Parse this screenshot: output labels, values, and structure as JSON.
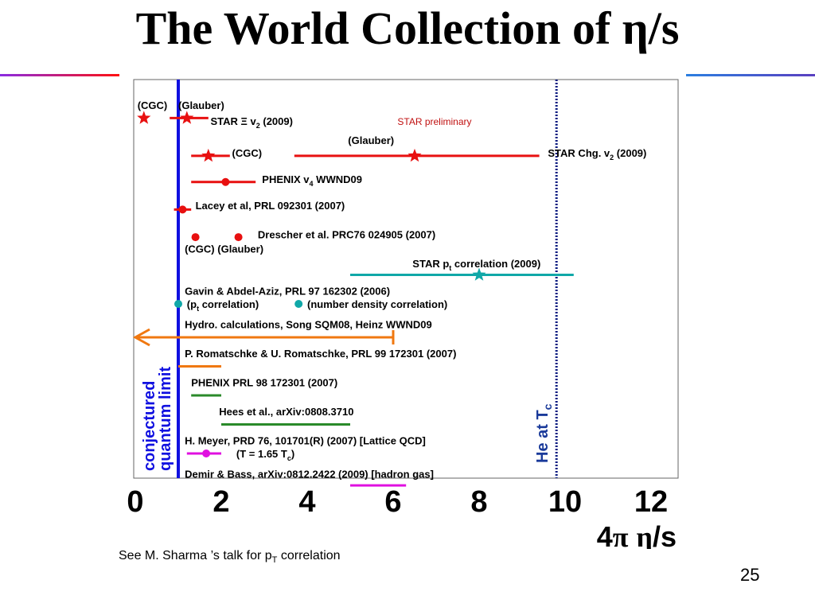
{
  "slide": {
    "title_prefix": "The World Collection of ",
    "title_symbol": "η",
    "title_suffix": "/s",
    "footnote_prefix": "See M. Sharma ’s talk for p",
    "footnote_sub": "T",
    "footnote_suffix": " correlation",
    "page_number": "25"
  },
  "chart_data": {
    "type": "scatter",
    "title": "",
    "xlabel_prefix": "4",
    "xlabel_pi": "π",
    "xlabel_eta": "η",
    "xlabel_suffix": "/s",
    "xlim": [
      0,
      12.5
    ],
    "xticks": [
      0,
      2,
      4,
      6,
      8,
      10,
      12
    ],
    "grid": false,
    "watermark": "STAR preliminary",
    "reference_lines": [
      {
        "name": "conjectured-limit",
        "x": 1.0,
        "style": "solid",
        "color": "#1010e0",
        "label_line1": "conjectured",
        "label_line2": "quantum limit"
      },
      {
        "name": "helium-tc",
        "x": 9.8,
        "style": "dotted",
        "color": "#0a1a80",
        "label": "He at T",
        "label_sub": "c"
      }
    ],
    "colors": {
      "red": "#e81010",
      "cyan": "#10a8a8",
      "orange": "#f07810",
      "green": "#2a8a2a",
      "magenta": "#e010e0",
      "label": "#000000"
    },
    "labels": [
      {
        "name": "label-cgc-star",
        "parts": [
          [
            "(CGC)"
          ]
        ],
        "x": 0.05,
        "row": 0
      },
      {
        "name": "label-glauber-star",
        "parts": [
          [
            "(Glauber)"
          ]
        ],
        "x": 1.0,
        "row": 0
      },
      {
        "name": "label-star-xi",
        "parts": [
          [
            "STAR Ξ v"
          ],
          [
            "2",
            "sub"
          ],
          [
            " (2009)"
          ]
        ],
        "x": 1.75,
        "row": 0.55
      },
      {
        "name": "label-star-prelim",
        "parts": [
          [
            "STAR preliminary"
          ]
        ],
        "x": 6.1,
        "row": 0.55,
        "kind": "watermark"
      },
      {
        "name": "label-cgc-chg",
        "parts": [
          [
            "(CGC)"
          ]
        ],
        "x": 2.25,
        "row": 1.65
      },
      {
        "name": "label-glauber-chg",
        "parts": [
          [
            "(Glauber)"
          ]
        ],
        "x": 4.95,
        "row": 1.2
      },
      {
        "name": "label-star-chg",
        "parts": [
          [
            "STAR Chg. v"
          ],
          [
            "2",
            "sub"
          ],
          [
            " (2009)"
          ]
        ],
        "x": 9.6,
        "row": 1.65
      },
      {
        "name": "label-phenix-v4",
        "parts": [
          [
            "PHENIX v"
          ],
          [
            "4",
            "sub"
          ],
          [
            " WWND09"
          ]
        ],
        "x": 2.95,
        "row": 2.55
      },
      {
        "name": "label-lacey",
        "parts": [
          [
            "Lacey et al, PRL 092301 (2007)"
          ]
        ],
        "x": 1.4,
        "row": 3.45
      },
      {
        "name": "label-drescher",
        "parts": [
          [
            "Drescher et al. PRC76 024905 (2007)"
          ]
        ],
        "x": 2.85,
        "row": 4.45
      },
      {
        "name": "label-cgc-glauber",
        "parts": [
          [
            "(CGC)  (Glauber)"
          ]
        ],
        "x": 1.15,
        "row": 4.95
      },
      {
        "name": "label-star-pt",
        "parts": [
          [
            "STAR p"
          ],
          [
            "t",
            "sub"
          ],
          [
            " correlation (2009)"
          ]
        ],
        "x": 6.45,
        "row": 5.45
      },
      {
        "name": "label-gavin",
        "parts": [
          [
            "Gavin & Abdel-Aziz, PRL 97 162302 (2006)"
          ]
        ],
        "x": 1.15,
        "row": 6.4
      },
      {
        "name": "label-pt-corr",
        "parts": [
          [
            "(p"
          ],
          [
            "t",
            "sub"
          ],
          [
            " correlation)"
          ]
        ],
        "x": 1.2,
        "row": 6.85
      },
      {
        "name": "label-num-density",
        "parts": [
          [
            "(number density correlation)"
          ]
        ],
        "x": 4.0,
        "row": 6.85
      },
      {
        "name": "label-hydro",
        "parts": [
          [
            "Hydro. calculations, Song SQM08, Heinz WWND09"
          ]
        ],
        "x": 1.15,
        "row": 7.55
      },
      {
        "name": "label-romatschke",
        "parts": [
          [
            "P. Romatschke & U. Romatschke, PRL 99 172301 (2007)"
          ]
        ],
        "x": 1.15,
        "row": 8.55
      },
      {
        "name": "label-phenix-prl",
        "parts": [
          [
            "PHENIX PRL 98 172301 (2007)"
          ]
        ],
        "x": 1.3,
        "row": 9.55
      },
      {
        "name": "label-hees",
        "parts": [
          [
            "Hees et al., arXiv:0808.3710"
          ]
        ],
        "x": 1.95,
        "row": 10.55
      },
      {
        "name": "label-meyer",
        "parts": [
          [
            "H. Meyer, PRD 76, 101701(R) (2007) [Lattice QCD]"
          ]
        ],
        "x": 1.15,
        "row": 11.55
      },
      {
        "name": "label-meyer-t",
        "parts": [
          [
            "(T = 1.65 T"
          ],
          [
            "c",
            "sub"
          ],
          [
            ")"
          ]
        ],
        "x": 2.35,
        "row": 12.0
      },
      {
        "name": "label-demir",
        "parts": [
          [
            "Demir & Bass, arXiv:0812.2422 (2009) [hadron gas]"
          ]
        ],
        "x": 1.15,
        "row": 12.7
      }
    ],
    "series": [
      {
        "name": "STAR Ξ v2 (2009)",
        "color": "red",
        "marker": "star",
        "points": [
          {
            "x": 0.2,
            "row": 0.45
          },
          {
            "x": 1.2,
            "row": 0.45,
            "xmin": 0.8,
            "xmax": 1.7
          }
        ]
      },
      {
        "name": "STAR Chg. v2 (2009)",
        "color": "red",
        "marker": "star",
        "points": [
          {
            "x": 1.7,
            "row": 1.75,
            "xmin": 1.3,
            "xmax": 2.2
          },
          {
            "x": 6.5,
            "row": 1.75,
            "xmin": 3.7,
            "xmax": 9.4
          }
        ]
      },
      {
        "name": "PHENIX v4 WWND09",
        "color": "red",
        "marker": "circle",
        "points": [
          {
            "x": 2.1,
            "row": 2.65,
            "xmin": 1.3,
            "xmax": 2.8
          }
        ]
      },
      {
        "name": "Lacey et al, PRL 092301 (2007)",
        "color": "red",
        "marker": "circle",
        "points": [
          {
            "x": 1.1,
            "row": 3.6,
            "xmin": 0.9,
            "xmax": 1.3
          }
        ]
      },
      {
        "name": "Drescher et al. PRC76 024905 (2007)",
        "color": "red",
        "marker": "circle",
        "points": [
          {
            "x": 1.4,
            "row": 4.55
          },
          {
            "x": 2.4,
            "row": 4.55
          }
        ]
      },
      {
        "name": "STAR pt correlation (2009)",
        "color": "cyan",
        "marker": "star",
        "points": [
          {
            "x": 8.0,
            "row": 5.85,
            "xmin": 5.0,
            "xmax": 10.2
          }
        ]
      },
      {
        "name": "Gavin & Abdel-Aziz, PRL 97 162302 (2006)",
        "color": "cyan",
        "marker": "circle",
        "points": [
          {
            "x": 1.0,
            "row": 6.85
          },
          {
            "x": 3.8,
            "row": 6.85
          }
        ]
      },
      {
        "name": "Hydro. calculations",
        "color": "orange",
        "marker": "arrow",
        "points": [
          {
            "x": 0.0,
            "row": 8.0,
            "xmin": 0.0,
            "xmax": 6.0
          }
        ]
      },
      {
        "name": "P. Romatschke & U. Romatschke",
        "color": "orange",
        "marker": "bar",
        "points": [
          {
            "x": 1.5,
            "row": 9.0,
            "xmin": 1.0,
            "xmax": 2.0
          }
        ]
      },
      {
        "name": "PHENIX PRL 98 172301 (2007)",
        "color": "green",
        "marker": "bar",
        "points": [
          {
            "x": 1.65,
            "row": 10.0,
            "xmin": 1.3,
            "xmax": 2.0
          }
        ]
      },
      {
        "name": "Hees et al., arXiv:0808.3710",
        "color": "green",
        "marker": "bar",
        "points": [
          {
            "x": 3.5,
            "row": 11.0,
            "xmin": 2.0,
            "xmax": 5.0
          }
        ]
      },
      {
        "name": "H. Meyer, PRD 76, 101701(R) (2007)",
        "color": "magenta",
        "marker": "circle",
        "points": [
          {
            "x": 1.65,
            "row": 12.0,
            "xmin": 1.2,
            "xmax": 2.0
          }
        ]
      },
      {
        "name": "Demir & Bass, arXiv:0812.2422 (2009)",
        "color": "magenta",
        "marker": "bar",
        "points": [
          {
            "x": 5.7,
            "row": 13.1,
            "xmin": 5.0,
            "xmax": 6.3
          }
        ]
      }
    ]
  }
}
